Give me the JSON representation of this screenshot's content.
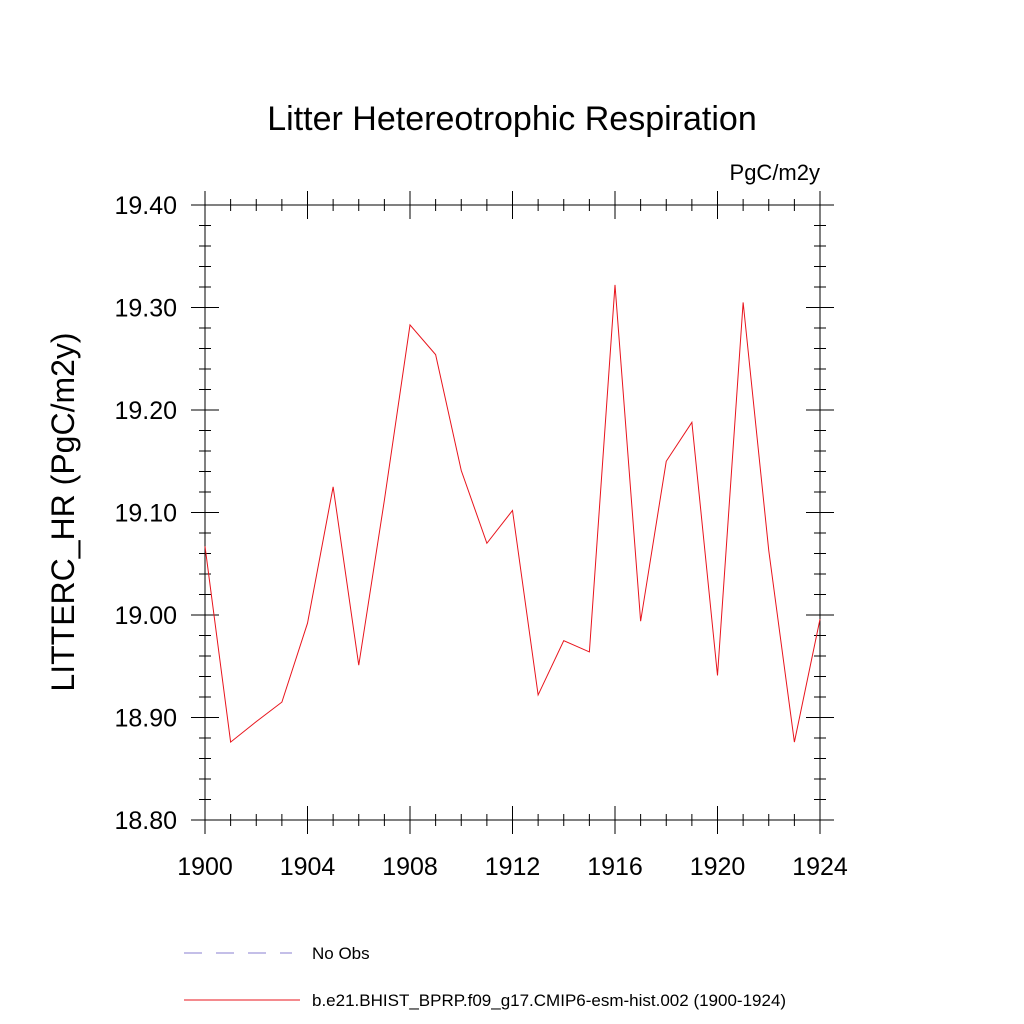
{
  "chart_data": {
    "type": "line",
    "title": "Litter Hetereotrophic Respiration",
    "units_label": "PgC/m2y",
    "xlabel": "",
    "ylabel": "LITTERC_HR  (PgC/m2y)",
    "xlim": [
      1900,
      1924
    ],
    "ylim": [
      18.8,
      19.4
    ],
    "x_ticks": [
      1900,
      1904,
      1908,
      1912,
      1916,
      1920,
      1924
    ],
    "x_tick_labels": [
      "1900",
      "1904",
      "1908",
      "1912",
      "1916",
      "1920",
      "1924"
    ],
    "y_ticks": [
      18.8,
      18.9,
      19.0,
      19.1,
      19.2,
      19.3,
      19.4
    ],
    "y_tick_labels": [
      "18.80",
      "18.90",
      "19.00",
      "19.10",
      "19.20",
      "19.30",
      "19.40"
    ],
    "grid": false,
    "legend_position": "bottom",
    "series": [
      {
        "name": "b.e21.BHIST_BPRP.f09_g17.CMIP6-esm-hist.002 (1900-1924)",
        "color": "#e8141c",
        "line_style": "solid",
        "x": [
          1900,
          1901,
          1902,
          1903,
          1904,
          1905,
          1906,
          1907,
          1908,
          1909,
          1910,
          1911,
          1912,
          1913,
          1914,
          1915,
          1916,
          1917,
          1918,
          1919,
          1920,
          1921,
          1922,
          1923,
          1924
        ],
        "y": [
          19.067,
          18.876,
          18.896,
          18.915,
          18.992,
          19.125,
          18.951,
          19.112,
          19.283,
          19.254,
          19.141,
          19.07,
          19.102,
          18.922,
          18.975,
          18.964,
          19.322,
          18.994,
          19.15,
          19.188,
          18.941,
          19.305,
          19.063,
          18.876,
          18.996
        ]
      }
    ],
    "legend": [
      {
        "label": "No Obs",
        "color": "#8a7fd0",
        "line_style": "dashed"
      },
      {
        "label": "b.e21.BHIST_BPRP.f09_g17.CMIP6-esm-hist.002 (1900-1924)",
        "color": "#e8141c",
        "line_style": "solid"
      }
    ]
  }
}
